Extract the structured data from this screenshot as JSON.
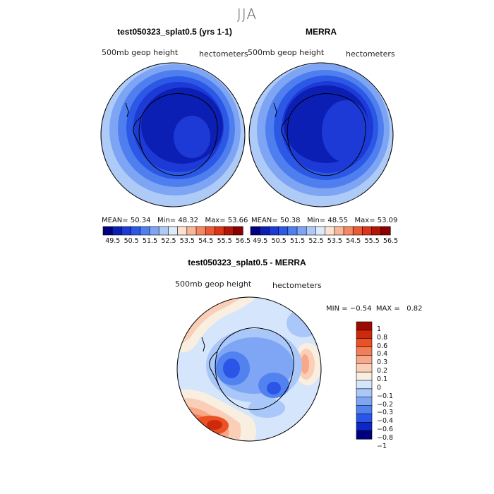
{
  "season": "JJA",
  "colors": {
    "abs_scale": [
      "#00007f",
      "#0c1fb4",
      "#1d3ad6",
      "#2b59e6",
      "#4f7fef",
      "#7ea4f4",
      "#aecbf8",
      "#dceaf9",
      "#fde2cf",
      "#f9b698",
      "#f48863",
      "#ec5a33",
      "#dc3517",
      "#b41505",
      "#8a0000"
    ],
    "diff_scale": [
      "#00007f",
      "#0b28c6",
      "#2a55e6",
      "#5282ef",
      "#7fa6f5",
      "#a9c7f8",
      "#d5e5fb",
      "#f9efe0",
      "#fbcfb7",
      "#f8a888",
      "#f27e57",
      "#ea5226",
      "#cd2a0c",
      "#9c0a00"
    ],
    "land": "#000000"
  },
  "panels": {
    "model": {
      "title": "test050323_splat0.5 (yrs 1-1)",
      "variable": "500mb geop height",
      "units": "hectometers",
      "stats": {
        "mean_label": "MEAN=",
        "mean": "50.34",
        "min_label": "Min=",
        "min": "48.32",
        "max_label": "Max=",
        "max": "53.66"
      }
    },
    "obs": {
      "title": "MERRA",
      "variable": "500mb geop height",
      "units": "hectometers",
      "stats": {
        "mean_label": "MEAN=",
        "mean": "50.38",
        "min_label": "Min=",
        "min": "48.55",
        "max_label": "Max=",
        "max": "53.09"
      }
    },
    "abs_ticks": [
      "49.5",
      "50.5",
      "51.5",
      "52.5",
      "53.5",
      "54.5",
      "55.5",
      "56.5"
    ],
    "diff": {
      "title": "test050323_splat0.5 - MERRA",
      "variable": "500mb geop height",
      "units": "hectometers",
      "min_label": "MIN =",
      "min": "−0.54",
      "max_label": "MAX =",
      "max": "0.82",
      "ticks": [
        "1",
        "0.8",
        "0.6",
        "0.4",
        "0.3",
        "0.2",
        "0.1",
        "0",
        "−0.1",
        "−0.2",
        "−0.3",
        "−0.4",
        "−0.6",
        "−0.8",
        "−1"
      ]
    }
  }
}
